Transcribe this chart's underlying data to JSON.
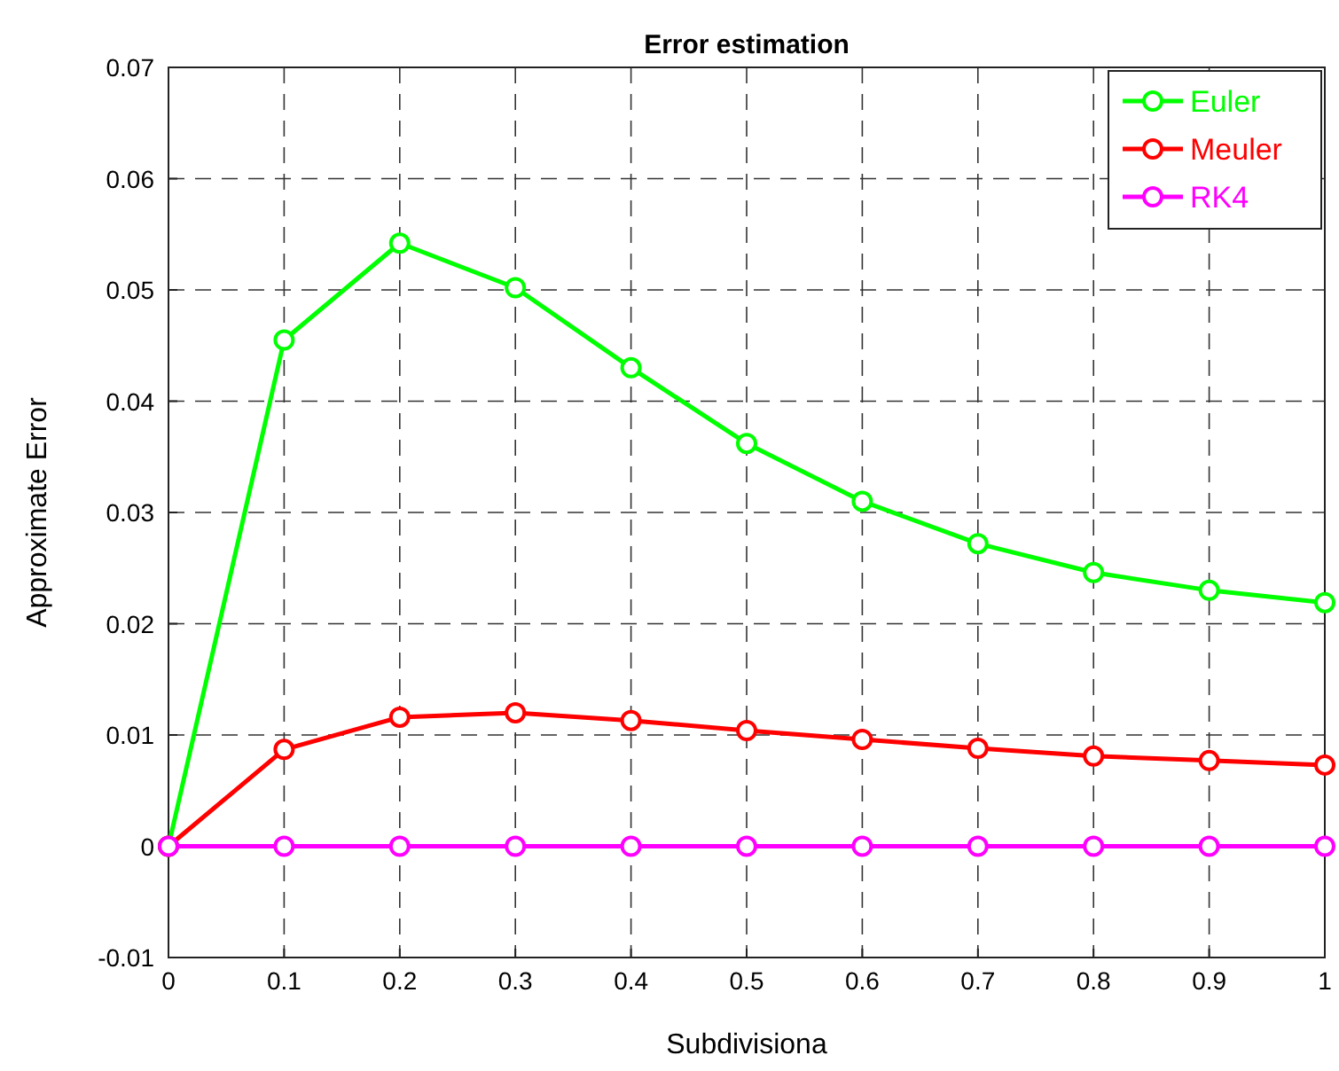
{
  "chart_data": {
    "type": "line",
    "title": "Error estimation",
    "xlabel": "Subdivisiona",
    "ylabel": "Approximate Error",
    "x": [
      0,
      0.1,
      0.2,
      0.3,
      0.4,
      0.5,
      0.6,
      0.7,
      0.8,
      0.9,
      1
    ],
    "xlim": [
      0,
      1
    ],
    "xticks": [
      0,
      0.1,
      0.2,
      0.3,
      0.4,
      0.5,
      0.6,
      0.7,
      0.8,
      0.9,
      1
    ],
    "ylim": [
      -0.01,
      0.07
    ],
    "yticks": [
      -0.01,
      0,
      0.01,
      0.02,
      0.03,
      0.04,
      0.05,
      0.06,
      0.07
    ],
    "grid": true,
    "legend": "top right",
    "marker": "circle",
    "line_style": "solid",
    "series": [
      {
        "name": "Euler",
        "color": "#00ff00",
        "values": [
          0,
          0.0455,
          0.0542,
          0.0502,
          0.043,
          0.0362,
          0.031,
          0.0272,
          0.0246,
          0.023,
          0.0219
        ]
      },
      {
        "name": "Meuler",
        "color": "#ff0000",
        "values": [
          0,
          0.0087,
          0.0116,
          0.012,
          0.0113,
          0.0104,
          0.0096,
          0.0088,
          0.0081,
          0.0077,
          0.0073
        ]
      },
      {
        "name": "RK4",
        "color": "#ff00ff",
        "values": [
          0,
          0,
          0,
          0,
          0,
          0,
          0,
          0,
          0,
          0,
          0
        ]
      }
    ]
  }
}
